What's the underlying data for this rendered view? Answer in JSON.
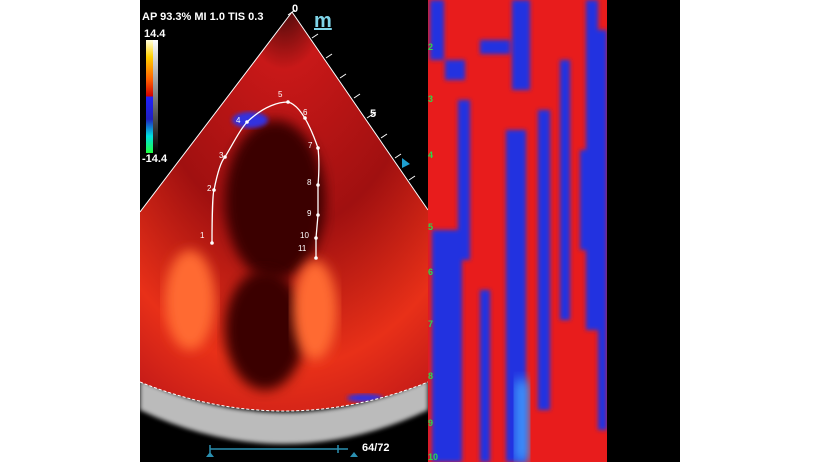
{
  "header": {
    "acoustic_readout": "AP 93.3%  MI 1.0 TIS 0.3",
    "logo_letter": "m"
  },
  "color_scale": {
    "max": "14.4",
    "min": "-14.4"
  },
  "depth_scale": {
    "top_label": "0",
    "mid_label": "5"
  },
  "tracking_points": [
    "1",
    "2",
    "3",
    "4",
    "5",
    "6",
    "7",
    "8",
    "9",
    "10",
    "11"
  ],
  "mmode_depth_labels": [
    "2",
    "3",
    "4",
    "5",
    "6",
    "7",
    "8",
    "9",
    "10"
  ],
  "cine": {
    "frame_counter": "64/72"
  },
  "colors": {
    "positive": "#ff2020",
    "negative": "#2030e0",
    "background": "#000000",
    "depth_labels": "#2bd94a"
  }
}
